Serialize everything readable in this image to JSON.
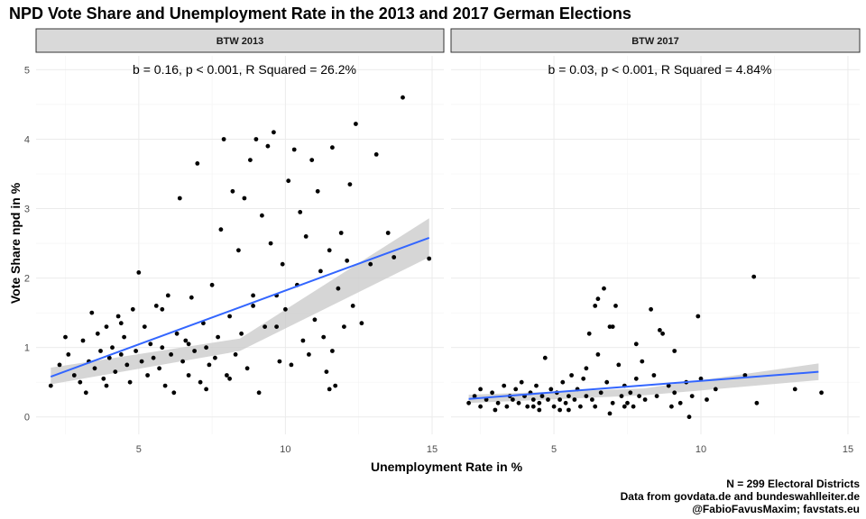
{
  "title": "NPD Vote Share and Unemployment Rate in the 2013 and 2017 German Elections",
  "caption": {
    "line1": "N = 299 Electoral Districts",
    "line2": "Data from govdata.de and bundeswahlleiter.de",
    "line3": "@FabioFavusMaxim; favstats.eu"
  },
  "colors": {
    "points": "#000000",
    "fit_line": "#3366ff",
    "confidence_band": "#cccccc",
    "strip": "#d9d9d9",
    "grid": "#ebebeb"
  },
  "chart_data": {
    "type": "scatter",
    "xlabel": "Unemployment Rate in %",
    "ylabel": "Vote Share npd in %",
    "xlim": [
      1.5,
      15.4
    ],
    "ylim": [
      -0.25,
      5.2
    ],
    "x_ticks": [
      5,
      10,
      15
    ],
    "y_ticks": [
      0,
      1,
      2,
      3,
      4,
      5
    ],
    "grid": true,
    "panels": [
      {
        "strip": "BTW 2013",
        "annotation": "b = 0.16, p < 0.001, R Squared = 26.2%",
        "fit": {
          "x0": 2.0,
          "y0": 0.58,
          "x1": 14.9,
          "y1": 2.58,
          "ci_low_edge": [
            0.47,
            0.95,
            2.3
          ],
          "ci_high_edge": [
            0.71,
            1.13,
            2.86
          ]
        },
        "points": [
          [
            2.0,
            0.45
          ],
          [
            2.3,
            0.75
          ],
          [
            2.6,
            0.9
          ],
          [
            2.8,
            0.6
          ],
          [
            3.0,
            0.5
          ],
          [
            3.1,
            1.1
          ],
          [
            3.3,
            0.8
          ],
          [
            3.4,
            1.5
          ],
          [
            3.5,
            0.7
          ],
          [
            3.6,
            1.2
          ],
          [
            3.7,
            0.95
          ],
          [
            3.8,
            0.55
          ],
          [
            3.9,
            1.3
          ],
          [
            4.0,
            0.85
          ],
          [
            4.1,
            1.0
          ],
          [
            4.2,
            0.65
          ],
          [
            4.3,
            1.45
          ],
          [
            4.4,
            0.9
          ],
          [
            4.5,
            1.15
          ],
          [
            4.6,
            0.75
          ],
          [
            4.7,
            0.5
          ],
          [
            4.8,
            1.55
          ],
          [
            4.9,
            0.95
          ],
          [
            5.0,
            2.08
          ],
          [
            5.1,
            0.8
          ],
          [
            5.2,
            1.3
          ],
          [
            5.3,
            0.6
          ],
          [
            5.4,
            1.05
          ],
          [
            5.5,
            0.85
          ],
          [
            5.6,
            1.6
          ],
          [
            5.7,
            0.7
          ],
          [
            5.8,
            1.0
          ],
          [
            5.9,
            0.45
          ],
          [
            6.0,
            1.75
          ],
          [
            6.1,
            0.9
          ],
          [
            6.2,
            0.35
          ],
          [
            6.3,
            1.2
          ],
          [
            6.4,
            3.15
          ],
          [
            6.5,
            0.8
          ],
          [
            6.6,
            1.1
          ],
          [
            6.7,
            0.6
          ],
          [
            6.8,
            1.72
          ],
          [
            6.9,
            0.95
          ],
          [
            7.0,
            3.65
          ],
          [
            7.1,
            0.5
          ],
          [
            7.2,
            1.35
          ],
          [
            7.3,
            1.0
          ],
          [
            7.4,
            0.75
          ],
          [
            7.5,
            1.9
          ],
          [
            7.6,
            0.85
          ],
          [
            7.7,
            1.15
          ],
          [
            7.8,
            2.7
          ],
          [
            7.9,
            4.0
          ],
          [
            8.0,
            0.6
          ],
          [
            8.1,
            1.45
          ],
          [
            8.2,
            3.25
          ],
          [
            8.3,
            0.9
          ],
          [
            8.4,
            2.4
          ],
          [
            8.5,
            1.2
          ],
          [
            8.6,
            3.15
          ],
          [
            8.7,
            0.7
          ],
          [
            8.8,
            3.7
          ],
          [
            8.9,
            1.6
          ],
          [
            9.0,
            4.0
          ],
          [
            9.1,
            0.35
          ],
          [
            9.2,
            2.9
          ],
          [
            9.3,
            1.3
          ],
          [
            9.4,
            3.9
          ],
          [
            9.5,
            2.5
          ],
          [
            9.6,
            4.1
          ],
          [
            9.7,
            1.75
          ],
          [
            9.8,
            0.8
          ],
          [
            9.9,
            2.2
          ],
          [
            10.0,
            1.55
          ],
          [
            10.1,
            3.4
          ],
          [
            10.2,
            0.75
          ],
          [
            10.3,
            3.85
          ],
          [
            10.4,
            1.9
          ],
          [
            10.5,
            2.95
          ],
          [
            10.6,
            1.1
          ],
          [
            10.7,
            2.6
          ],
          [
            10.8,
            0.9
          ],
          [
            10.9,
            3.7
          ],
          [
            11.0,
            1.4
          ],
          [
            11.1,
            3.25
          ],
          [
            11.2,
            2.1
          ],
          [
            11.3,
            1.15
          ],
          [
            11.4,
            0.65
          ],
          [
            11.5,
            2.4
          ],
          [
            11.6,
            3.88
          ],
          [
            11.7,
            0.45
          ],
          [
            11.8,
            1.85
          ],
          [
            11.9,
            2.65
          ],
          [
            12.0,
            1.3
          ],
          [
            12.1,
            2.25
          ],
          [
            12.2,
            3.35
          ],
          [
            12.3,
            1.6
          ],
          [
            12.4,
            4.22
          ],
          [
            12.6,
            1.35
          ],
          [
            12.9,
            2.2
          ],
          [
            13.1,
            3.78
          ],
          [
            13.5,
            2.65
          ],
          [
            13.7,
            2.3
          ],
          [
            14.0,
            4.6
          ],
          [
            14.9,
            2.28
          ],
          [
            2.5,
            1.15
          ],
          [
            3.2,
            0.35
          ],
          [
            3.9,
            0.45
          ],
          [
            4.4,
            1.35
          ],
          [
            5.8,
            1.55
          ],
          [
            6.7,
            1.05
          ],
          [
            7.3,
            0.4
          ],
          [
            8.1,
            0.55
          ],
          [
            8.9,
            1.75
          ],
          [
            9.7,
            1.3
          ],
          [
            11.5,
            0.4
          ],
          [
            11.6,
            0.95
          ]
        ]
      },
      {
        "strip": "BTW 2017",
        "annotation": "b = 0.03, p < 0.001, R Squared = 4.84%",
        "fit": {
          "x0": 2.1,
          "y0": 0.26,
          "x1": 14.0,
          "y1": 0.65,
          "ci_low_edge": [
            0.2,
            0.31,
            0.53
          ],
          "ci_high_edge": [
            0.32,
            0.41,
            0.77
          ]
        },
        "points": [
          [
            2.1,
            0.2
          ],
          [
            2.3,
            0.3
          ],
          [
            2.5,
            0.15
          ],
          [
            2.7,
            0.25
          ],
          [
            2.9,
            0.35
          ],
          [
            3.1,
            0.2
          ],
          [
            3.3,
            0.45
          ],
          [
            3.4,
            0.15
          ],
          [
            3.5,
            0.3
          ],
          [
            3.6,
            0.25
          ],
          [
            3.7,
            0.4
          ],
          [
            3.8,
            0.2
          ],
          [
            3.9,
            0.5
          ],
          [
            4.0,
            0.3
          ],
          [
            4.1,
            0.15
          ],
          [
            4.2,
            0.35
          ],
          [
            4.3,
            0.25
          ],
          [
            4.4,
            0.45
          ],
          [
            4.5,
            0.2
          ],
          [
            4.6,
            0.3
          ],
          [
            4.7,
            0.85
          ],
          [
            4.8,
            0.25
          ],
          [
            4.9,
            0.4
          ],
          [
            5.0,
            0.15
          ],
          [
            5.1,
            0.35
          ],
          [
            5.2,
            0.25
          ],
          [
            5.3,
            0.5
          ],
          [
            5.4,
            0.2
          ],
          [
            5.5,
            0.3
          ],
          [
            5.6,
            0.6
          ],
          [
            5.7,
            0.25
          ],
          [
            5.8,
            0.4
          ],
          [
            5.9,
            0.15
          ],
          [
            6.0,
            0.55
          ],
          [
            6.1,
            0.3
          ],
          [
            6.2,
            1.2
          ],
          [
            6.3,
            0.25
          ],
          [
            6.4,
            1.6
          ],
          [
            6.5,
            0.9
          ],
          [
            6.6,
            0.35
          ],
          [
            6.7,
            1.85
          ],
          [
            6.8,
            0.5
          ],
          [
            6.9,
            1.3
          ],
          [
            7.0,
            0.2
          ],
          [
            7.1,
            1.6
          ],
          [
            7.2,
            0.75
          ],
          [
            7.3,
            0.3
          ],
          [
            7.4,
            0.45
          ],
          [
            7.5,
            0.2
          ],
          [
            7.6,
            0.35
          ],
          [
            7.7,
            0.15
          ],
          [
            7.8,
            0.55
          ],
          [
            7.9,
            0.3
          ],
          [
            8.0,
            0.8
          ],
          [
            8.1,
            0.25
          ],
          [
            8.3,
            1.55
          ],
          [
            8.4,
            0.6
          ],
          [
            8.5,
            0.3
          ],
          [
            8.7,
            1.2
          ],
          [
            8.9,
            0.45
          ],
          [
            9.0,
            0.15
          ],
          [
            9.1,
            0.35
          ],
          [
            9.3,
            0.2
          ],
          [
            9.5,
            0.5
          ],
          [
            9.7,
            0.3
          ],
          [
            9.9,
            1.45
          ],
          [
            10.0,
            0.55
          ],
          [
            10.2,
            0.25
          ],
          [
            10.5,
            0.4
          ],
          [
            11.5,
            0.6
          ],
          [
            11.8,
            2.02
          ],
          [
            11.9,
            0.2
          ],
          [
            13.2,
            0.4
          ],
          [
            14.1,
            0.35
          ],
          [
            2.5,
            0.4
          ],
          [
            3.0,
            0.1
          ],
          [
            4.5,
            0.1
          ],
          [
            5.5,
            0.1
          ],
          [
            6.9,
            0.05
          ],
          [
            9.6,
            0.0
          ],
          [
            6.1,
            0.7
          ],
          [
            7.8,
            1.05
          ],
          [
            8.6,
            1.25
          ],
          [
            9.1,
            0.95
          ],
          [
            6.5,
            1.7
          ],
          [
            7.0,
            1.3
          ],
          [
            4.3,
            0.15
          ],
          [
            5.2,
            0.1
          ],
          [
            6.4,
            0.15
          ],
          [
            7.4,
            0.15
          ]
        ]
      }
    ]
  }
}
